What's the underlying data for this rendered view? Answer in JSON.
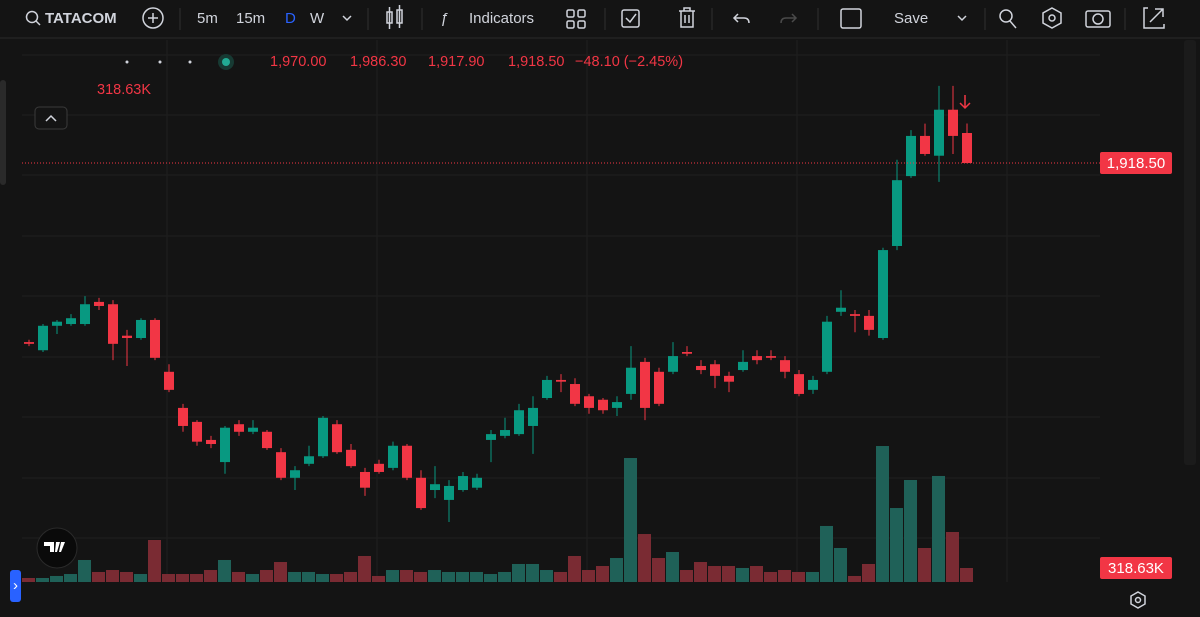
{
  "toolbar": {
    "symbol": "TATACOM",
    "intervals": [
      "5m",
      "15m",
      "D",
      "W"
    ],
    "indicators": "Indicators",
    "save": "Save"
  },
  "legend": {
    "open": "1,970.00",
    "high": "1,986.30",
    "low": "1,917.90",
    "close": "1,918.50",
    "change": "−48.10 (−2.45%)",
    "volume": "318.63K"
  },
  "chart_data": {
    "type": "candlestick",
    "candles": [
      [
        1611,
        1615,
        1604,
        1608
      ],
      [
        1597,
        1642,
        1594,
        1639
      ],
      [
        1639,
        1649,
        1625,
        1646
      ],
      [
        1642,
        1659,
        1639,
        1652
      ],
      [
        1642,
        1690,
        1639,
        1676
      ],
      [
        1680,
        1687,
        1666,
        1673
      ],
      [
        1676,
        1683,
        1580,
        1608
      ],
      [
        1622,
        1632,
        1570,
        1618
      ],
      [
        1618,
        1652,
        1615,
        1649
      ],
      [
        1649,
        1652,
        1580,
        1584
      ],
      [
        1560,
        1573,
        1525,
        1529
      ],
      [
        1498,
        1505,
        1457,
        1467
      ],
      [
        1474,
        1477,
        1433,
        1440
      ],
      [
        1443,
        1450,
        1429,
        1436
      ],
      [
        1405,
        1467,
        1385,
        1464
      ],
      [
        1470,
        1477,
        1450,
        1457
      ],
      [
        1457,
        1477,
        1453,
        1464
      ],
      [
        1457,
        1460,
        1426,
        1429
      ],
      [
        1422,
        1429,
        1374,
        1378
      ],
      [
        1378,
        1398,
        1357,
        1391
      ],
      [
        1402,
        1433,
        1398,
        1415
      ],
      [
        1415,
        1484,
        1412,
        1481
      ],
      [
        1470,
        1477,
        1419,
        1422
      ],
      [
        1426,
        1436,
        1395,
        1398
      ],
      [
        1388,
        1395,
        1347,
        1361
      ],
      [
        1402,
        1409,
        1385,
        1388
      ],
      [
        1395,
        1440,
        1391,
        1433
      ],
      [
        1433,
        1436,
        1374,
        1378
      ],
      [
        1378,
        1391,
        1323,
        1326
      ],
      [
        1357,
        1398,
        1343,
        1367
      ],
      [
        1340,
        1374,
        1302,
        1364
      ],
      [
        1357,
        1388,
        1354,
        1381
      ],
      [
        1361,
        1385,
        1357,
        1378
      ],
      [
        1443,
        1460,
        1405,
        1453
      ],
      [
        1450,
        1481,
        1446,
        1460
      ],
      [
        1453,
        1505,
        1450,
        1494
      ],
      [
        1467,
        1518,
        1419,
        1498
      ],
      [
        1515,
        1553,
        1512,
        1546
      ],
      [
        1546,
        1556,
        1525,
        1543
      ],
      [
        1539,
        1549,
        1501,
        1505
      ],
      [
        1518,
        1522,
        1488,
        1498
      ],
      [
        1512,
        1515,
        1488,
        1494
      ],
      [
        1498,
        1518,
        1484,
        1508
      ],
      [
        1522,
        1604,
        1512,
        1567
      ],
      [
        1577,
        1584,
        1477,
        1498
      ],
      [
        1560,
        1567,
        1501,
        1505
      ],
      [
        1560,
        1611,
        1556,
        1587
      ],
      [
        1594,
        1604,
        1587,
        1591
      ],
      [
        1570,
        1580,
        1556,
        1563
      ],
      [
        1573,
        1580,
        1532,
        1553
      ],
      [
        1553,
        1560,
        1525,
        1543
      ],
      [
        1563,
        1597,
        1560,
        1577
      ],
      [
        1587,
        1597,
        1573,
        1580
      ],
      [
        1587,
        1597,
        1580,
        1584
      ],
      [
        1580,
        1587,
        1549,
        1560
      ],
      [
        1556,
        1563,
        1518,
        1522
      ],
      [
        1529,
        1553,
        1522,
        1546
      ],
      [
        1560,
        1656,
        1556,
        1646
      ],
      [
        1663,
        1700,
        1656,
        1670
      ],
      [
        1659,
        1666,
        1628,
        1656
      ],
      [
        1656,
        1666,
        1622,
        1632
      ],
      [
        1618,
        1773,
        1615,
        1769
      ],
      [
        1776,
        1924,
        1769,
        1889
      ],
      [
        1896,
        1975,
        1893,
        1965
      ],
      [
        1965,
        1986,
        1931,
        1934
      ],
      [
        1931,
        2051,
        1886,
        2010
      ],
      [
        2010,
        2051,
        1934,
        1965
      ],
      [
        1970,
        1986.3,
        1917.9,
        1918.5
      ]
    ],
    "volumes": [
      91,
      91,
      137,
      182,
      501,
      228,
      273,
      228,
      182,
      956,
      182,
      182,
      182,
      273,
      501,
      228,
      182,
      273,
      455,
      228,
      228,
      182,
      182,
      228,
      592,
      137,
      273,
      273,
      228,
      273,
      228,
      228,
      228,
      182,
      228,
      410,
      410,
      273,
      228,
      592,
      273,
      364,
      546,
      2822,
      1092,
      546,
      683,
      273,
      455,
      364,
      364,
      319,
      364,
      228,
      273,
      228,
      228,
      1275,
      774,
      137,
      410,
      3095,
      1684,
      2322,
      774,
      2413,
      1138,
      318.63
    ],
    "last_price_label": "1,918.50",
    "last_volume_label": "318.63K"
  }
}
